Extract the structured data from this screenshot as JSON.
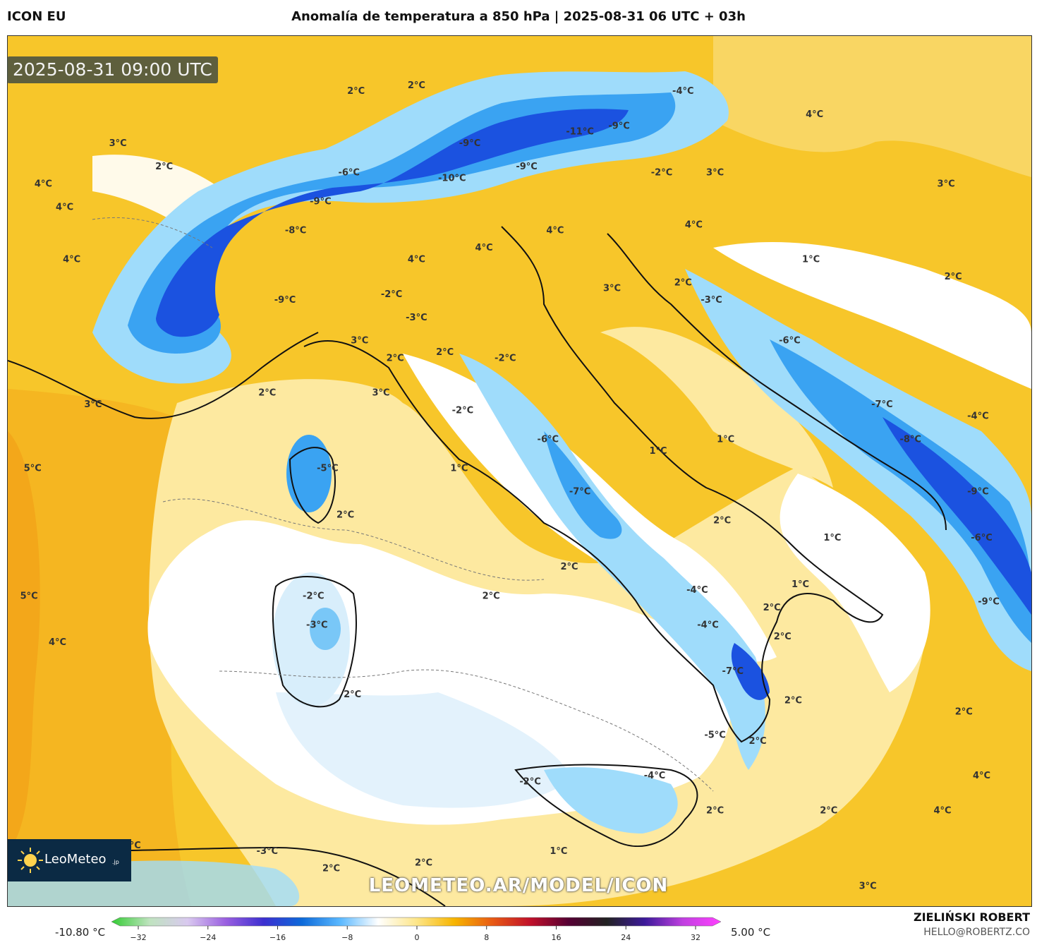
{
  "header": {
    "model": "ICON EU",
    "title": "Anomalía de temperatura a 850 hPa | 2025-08-31 06 UTC + 03h"
  },
  "map": {
    "valid_time": "2025-08-31 09:00 UTC",
    "watermark": "LEOMETEO.AR/MODEL/ICON",
    "logo_text": "LeoMeteo",
    "logo_suffix": ".jp",
    "labels": [
      {
        "text": "2°C",
        "lon": 6.2,
        "lat": 47.3
      },
      {
        "text": "2°C",
        "lon": 7.9,
        "lat": 47.4
      },
      {
        "text": "3°C",
        "lon": -0.5,
        "lat": 46.4
      },
      {
        "text": "-4°C",
        "lon": 15.4,
        "lat": 47.3
      },
      {
        "text": "4°C",
        "lon": 19.1,
        "lat": 46.9
      },
      {
        "text": "-11°C",
        "lon": 12.5,
        "lat": 46.6
      },
      {
        "text": "-9°C",
        "lon": 13.6,
        "lat": 46.7
      },
      {
        "text": "-9°C",
        "lon": 9.4,
        "lat": 46.4
      },
      {
        "text": "2°C",
        "lon": 0.8,
        "lat": 46.0
      },
      {
        "text": "-6°C",
        "lon": 6.0,
        "lat": 45.9
      },
      {
        "text": "-10°C",
        "lon": 8.9,
        "lat": 45.8
      },
      {
        "text": "-9°C",
        "lon": 11.0,
        "lat": 46.0
      },
      {
        "text": "-2°C",
        "lon": 14.8,
        "lat": 45.9
      },
      {
        "text": "3°C",
        "lon": 16.3,
        "lat": 45.9
      },
      {
        "text": "4°C",
        "lon": -2.6,
        "lat": 45.7
      },
      {
        "text": "3°C",
        "lon": 22.8,
        "lat": 45.7
      },
      {
        "text": "4°C",
        "lon": -2.0,
        "lat": 45.3
      },
      {
        "text": "-9°C",
        "lon": 5.2,
        "lat": 45.4
      },
      {
        "text": "-8°C",
        "lon": 4.5,
        "lat": 44.9
      },
      {
        "text": "4°C",
        "lon": 11.8,
        "lat": 44.9
      },
      {
        "text": "4°C",
        "lon": 15.7,
        "lat": 45.0
      },
      {
        "text": "4°C",
        "lon": -1.8,
        "lat": 44.4
      },
      {
        "text": "4°C",
        "lon": 9.8,
        "lat": 44.6
      },
      {
        "text": "4°C",
        "lon": 7.9,
        "lat": 44.4
      },
      {
        "text": "1°C",
        "lon": 19.0,
        "lat": 44.4
      },
      {
        "text": "2°C",
        "lon": 23.0,
        "lat": 44.1
      },
      {
        "text": "3°C",
        "lon": 13.4,
        "lat": 43.9
      },
      {
        "text": "2°C",
        "lon": 15.4,
        "lat": 44.0
      },
      {
        "text": "-9°C",
        "lon": 4.2,
        "lat": 43.7
      },
      {
        "text": "-2°C",
        "lon": 7.2,
        "lat": 43.8
      },
      {
        "text": "-3°C",
        "lon": 16.2,
        "lat": 43.7
      },
      {
        "text": "-3°C",
        "lon": 7.9,
        "lat": 43.4
      },
      {
        "text": "3°C",
        "lon": 6.3,
        "lat": 43.0
      },
      {
        "text": "-6°C",
        "lon": 18.4,
        "lat": 43.0
      },
      {
        "text": "2°C",
        "lon": 7.3,
        "lat": 42.7
      },
      {
        "text": "2°C",
        "lon": 8.7,
        "lat": 42.8
      },
      {
        "text": "-2°C",
        "lon": 10.4,
        "lat": 42.7
      },
      {
        "text": "2°C",
        "lon": 3.7,
        "lat": 42.1
      },
      {
        "text": "3°C",
        "lon": -1.2,
        "lat": 41.9
      },
      {
        "text": "3°C",
        "lon": 6.9,
        "lat": 42.1
      },
      {
        "text": "-2°C",
        "lon": 9.2,
        "lat": 41.8
      },
      {
        "text": "-7°C",
        "lon": 21.0,
        "lat": 41.9
      },
      {
        "text": "-4°C",
        "lon": 23.7,
        "lat": 41.7
      },
      {
        "text": "-6°C",
        "lon": 11.6,
        "lat": 41.3
      },
      {
        "text": "1°C",
        "lon": 14.7,
        "lat": 41.1
      },
      {
        "text": "1°C",
        "lon": 16.6,
        "lat": 41.3
      },
      {
        "text": "-8°C",
        "lon": 21.8,
        "lat": 41.3
      },
      {
        "text": "5°C",
        "lon": -2.9,
        "lat": 40.8
      },
      {
        "text": "-5°C",
        "lon": 5.4,
        "lat": 40.8
      },
      {
        "text": "1°C",
        "lon": 9.1,
        "lat": 40.8
      },
      {
        "text": "-7°C",
        "lon": 12.5,
        "lat": 40.4
      },
      {
        "text": "-9°C",
        "lon": 23.7,
        "lat": 40.4
      },
      {
        "text": "2°C",
        "lon": 5.9,
        "lat": 40.0
      },
      {
        "text": "2°C",
        "lon": 16.5,
        "lat": 39.9
      },
      {
        "text": "1°C",
        "lon": 19.6,
        "lat": 39.6
      },
      {
        "text": "-6°C",
        "lon": 23.8,
        "lat": 39.6
      },
      {
        "text": "2°C",
        "lon": 12.2,
        "lat": 39.1
      },
      {
        "text": "2°C",
        "lon": 10.0,
        "lat": 38.6
      },
      {
        "text": "-2°C",
        "lon": 5.0,
        "lat": 38.6
      },
      {
        "text": "5°C",
        "lon": -3.0,
        "lat": 38.6
      },
      {
        "text": "-4°C",
        "lon": 15.8,
        "lat": 38.7
      },
      {
        "text": "1°C",
        "lon": 18.7,
        "lat": 38.8
      },
      {
        "text": "2°C",
        "lon": 17.9,
        "lat": 38.4
      },
      {
        "text": "-9°C",
        "lon": 24.0,
        "lat": 38.5
      },
      {
        "text": "-3°C",
        "lon": 5.1,
        "lat": 38.1
      },
      {
        "text": "-4°C",
        "lon": 16.1,
        "lat": 38.1
      },
      {
        "text": "2°C",
        "lon": 18.2,
        "lat": 37.9
      },
      {
        "text": "4°C",
        "lon": -2.2,
        "lat": 37.8
      },
      {
        "text": "-7°C",
        "lon": 16.8,
        "lat": 37.3
      },
      {
        "text": "2°C",
        "lon": 6.1,
        "lat": 36.9
      },
      {
        "text": "2°C",
        "lon": 18.5,
        "lat": 36.8
      },
      {
        "text": "2°C",
        "lon": 23.3,
        "lat": 36.6
      },
      {
        "text": "-5°C",
        "lon": 16.3,
        "lat": 36.2
      },
      {
        "text": "2°C",
        "lon": 17.5,
        "lat": 36.1
      },
      {
        "text": "-4°C",
        "lon": 14.6,
        "lat": 35.5
      },
      {
        "text": "-2°C",
        "lon": 11.1,
        "lat": 35.4
      },
      {
        "text": "4°C",
        "lon": 23.8,
        "lat": 35.5
      },
      {
        "text": "2°C",
        "lon": 16.3,
        "lat": 34.9
      },
      {
        "text": "2°C",
        "lon": 19.5,
        "lat": 34.9
      },
      {
        "text": "4°C",
        "lon": 22.7,
        "lat": 34.9
      },
      {
        "text": "5°C",
        "lon": -1.5,
        "lat": 34.3
      },
      {
        "text": "4°C",
        "lon": -0.1,
        "lat": 34.3
      },
      {
        "text": "-3°C",
        "lon": 3.7,
        "lat": 34.2
      },
      {
        "text": "1°C",
        "lon": 11.9,
        "lat": 34.2
      },
      {
        "text": "2°C",
        "lon": 5.5,
        "lat": 33.9
      },
      {
        "text": "2°C",
        "lon": 8.1,
        "lat": 34.0
      },
      {
        "text": "3°C",
        "lon": 20.6,
        "lat": 33.6
      }
    ]
  },
  "legend": {
    "min_label": "-10.80 °C",
    "max_label": "5.00 °C",
    "ticks": [
      "−32",
      "−24",
      "−16",
      "−8",
      "0",
      "8",
      "16",
      "24",
      "32"
    ],
    "stops": [
      "#33cc33",
      "#bfe3bf",
      "#d9c9ef",
      "#9a5fe0",
      "#3c2fd0",
      "#0d6ad9",
      "#5ab8ff",
      "#ffffff",
      "#fde68a",
      "#f7b500",
      "#e85a14",
      "#c0102a",
      "#550033",
      "#222222",
      "#3c1a9a",
      "#c040e0",
      "#ff40ff"
    ]
  },
  "credit": {
    "name": "ZIELIŃSKI ROBERT",
    "email": "HELLO@ROBERTZ.CO"
  }
}
